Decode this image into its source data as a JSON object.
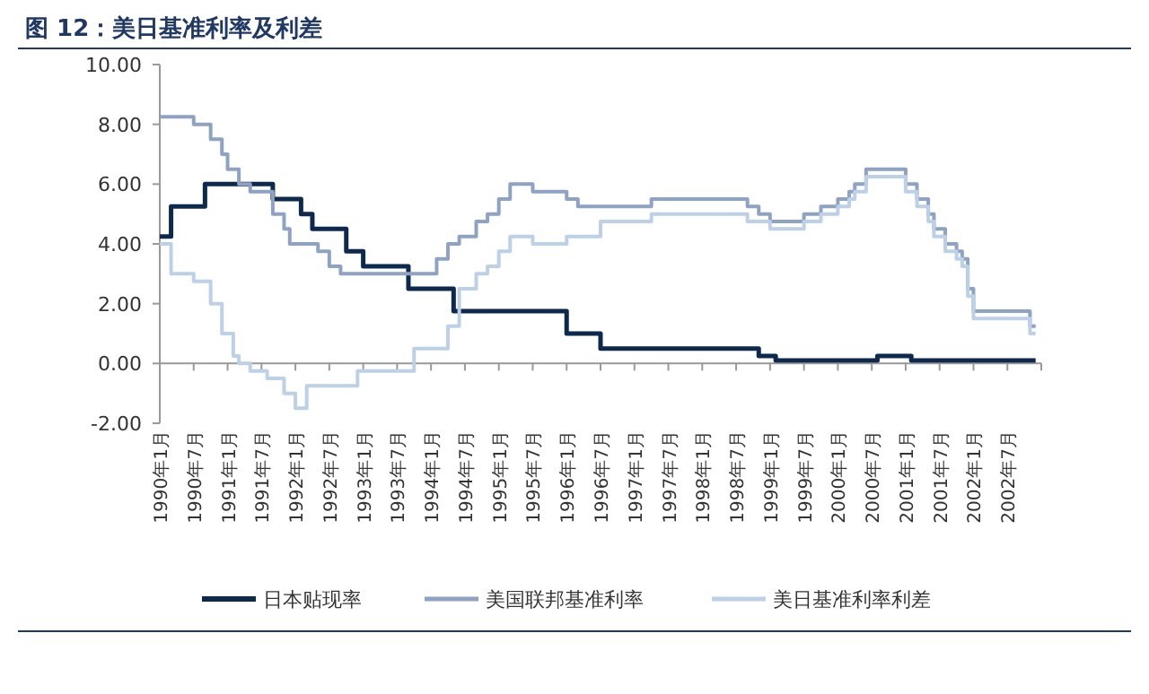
{
  "chart_data": {
    "type": "step",
    "title": "图 12：美日基准利率及利差",
    "xlim": [
      "1990-01",
      "2003-01"
    ],
    "xticks": [
      {
        "value": "1990-01",
        "label": "1990年1月"
      },
      {
        "value": "1990-07",
        "label": "1990年7月"
      },
      {
        "value": "1991-01",
        "label": "1991年1月"
      },
      {
        "value": "1991-07",
        "label": "1991年7月"
      },
      {
        "value": "1992-01",
        "label": "1992年1月"
      },
      {
        "value": "1992-07",
        "label": "1992年7月"
      },
      {
        "value": "1993-01",
        "label": "1993年1月"
      },
      {
        "value": "1993-07",
        "label": "1993年7月"
      },
      {
        "value": "1994-01",
        "label": "1994年1月"
      },
      {
        "value": "1994-07",
        "label": "1994年7月"
      },
      {
        "value": "1995-01",
        "label": "1995年1月"
      },
      {
        "value": "1995-07",
        "label": "1995年7月"
      },
      {
        "value": "1996-01",
        "label": "1996年1月"
      },
      {
        "value": "1996-07",
        "label": "1996年7月"
      },
      {
        "value": "1997-01",
        "label": "1997年1月"
      },
      {
        "value": "1997-07",
        "label": "1997年7月"
      },
      {
        "value": "1998-01",
        "label": "1998年1月"
      },
      {
        "value": "1998-07",
        "label": "1998年7月"
      },
      {
        "value": "1999-01",
        "label": "1999年1月"
      },
      {
        "value": "1999-07",
        "label": "1999年7月"
      },
      {
        "value": "2000-01",
        "label": "2000年1月"
      },
      {
        "value": "2000-07",
        "label": "2000年7月"
      },
      {
        "value": "2001-01",
        "label": "2001年1月"
      },
      {
        "value": "2001-07",
        "label": "2001年7月"
      },
      {
        "value": "2002-01",
        "label": "2002年1月"
      },
      {
        "value": "2002-07",
        "label": "2002年7月"
      },
      {
        "value": "2003-01",
        "label": null
      }
    ],
    "ylim": [
      -2,
      10
    ],
    "yticks": [
      {
        "value": -2,
        "label": "-2.00"
      },
      {
        "value": 0,
        "label": "0.00"
      },
      {
        "value": 2,
        "label": "2.00"
      },
      {
        "value": 4,
        "label": "4.00"
      },
      {
        "value": 6,
        "label": "6.00"
      },
      {
        "value": 8,
        "label": "8.00"
      },
      {
        "value": 10,
        "label": "10.00"
      }
    ],
    "legend": "bottom",
    "series": [
      {
        "name": "日本贴现率",
        "color": "#0d2a4e",
        "x": [
          "1990-01",
          "1990-03",
          "1990-09",
          "1991-09",
          "1992-02",
          "1992-04",
          "1992-10",
          "1993-01",
          "1993-09",
          "1994-05",
          "1996-01",
          "1996-07",
          "1998-11",
          "1999-02",
          "2000-08",
          "2001-02",
          "2002-12"
        ],
        "values": [
          4.25,
          5.25,
          6.0,
          5.5,
          5.0,
          4.5,
          3.75,
          3.25,
          2.5,
          1.75,
          1.0,
          0.5,
          0.25,
          0.1,
          0.25,
          0.1,
          0.1
        ]
      },
      {
        "name": "美国联邦基准利率",
        "color": "#8ea3c4",
        "x": [
          "1990-01",
          "1990-07",
          "1990-10",
          "1990-12",
          "1991-01",
          "1991-03",
          "1991-05",
          "1991-09",
          "1991-11",
          "1991-12",
          "1992-05",
          "1992-07",
          "1992-09",
          "1994-02",
          "1994-04",
          "1994-06",
          "1994-09",
          "1994-11",
          "1995-01",
          "1995-03",
          "1995-07",
          "1996-01",
          "1996-03",
          "1997-04",
          "1998-09",
          "1998-11",
          "1999-01",
          "1999-07",
          "1999-10",
          "2000-01",
          "2000-03",
          "2000-04",
          "2000-06",
          "2001-01",
          "2001-03",
          "2001-05",
          "2001-06",
          "2001-08",
          "2001-10",
          "2001-11",
          "2001-12",
          "2002-01",
          "2002-11",
          "2002-12"
        ],
        "values": [
          8.25,
          8.0,
          7.5,
          7.0,
          6.5,
          6.0,
          5.75,
          5.0,
          4.5,
          4.0,
          3.75,
          3.25,
          3.0,
          3.5,
          4.0,
          4.25,
          4.75,
          5.0,
          5.5,
          6.0,
          5.75,
          5.5,
          5.25,
          5.5,
          5.25,
          5.0,
          4.75,
          5.0,
          5.25,
          5.5,
          5.75,
          6.0,
          6.5,
          6.0,
          5.5,
          5.0,
          4.5,
          4.0,
          3.75,
          3.5,
          2.5,
          1.75,
          1.25,
          1.25
        ]
      },
      {
        "name": "美日基准利率利差",
        "color": "#bcd0e8",
        "x": [
          "1990-01",
          "1990-03",
          "1990-07",
          "1990-10",
          "1990-12",
          "1991-02",
          "1991-03",
          "1991-05",
          "1991-08",
          "1991-11",
          "1992-01",
          "1992-03",
          "1992-10",
          "1992-12",
          "1993-10",
          "1994-04",
          "1994-06",
          "1994-09",
          "1994-11",
          "1995-01",
          "1995-03",
          "1995-07",
          "1996-01",
          "1996-07",
          "1997-04",
          "1998-09",
          "1999-01",
          "1999-07",
          "1999-10",
          "2000-01",
          "2000-03",
          "2000-04",
          "2000-06",
          "2000-08",
          "2001-01",
          "2001-03",
          "2001-05",
          "2001-06",
          "2001-08",
          "2001-10",
          "2001-11",
          "2001-12",
          "2002-01",
          "2002-11",
          "2002-12"
        ],
        "values": [
          4.0,
          3.0,
          2.75,
          2.0,
          1.0,
          0.25,
          0,
          -0.25,
          -0.5,
          -1.0,
          -1.5,
          -0.75,
          -0.75,
          -0.25,
          0.5,
          1.25,
          2.5,
          3.0,
          3.25,
          3.75,
          4.25,
          4.0,
          4.25,
          4.75,
          5.0,
          4.75,
          4.5,
          4.75,
          5.0,
          5.25,
          5.5,
          5.75,
          6.25,
          6.25,
          5.75,
          5.25,
          4.75,
          4.25,
          3.75,
          3.5,
          3.25,
          2.25,
          1.5,
          1.0,
          1.0
        ]
      }
    ]
  }
}
